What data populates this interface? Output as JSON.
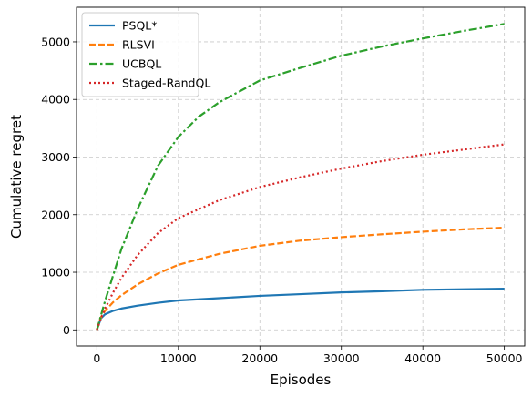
{
  "chart_data": {
    "type": "line",
    "title": "",
    "xlabel": "Episodes",
    "ylabel": "Cumulative regret",
    "xlim": [
      -2500,
      52500
    ],
    "ylim": [
      -280,
      5600
    ],
    "xticks": [
      0,
      10000,
      20000,
      30000,
      40000,
      50000
    ],
    "yticks": [
      0,
      1000,
      2000,
      3000,
      4000,
      5000
    ],
    "grid": true,
    "legend_position": "top-left",
    "series": [
      {
        "name": "PSQL*",
        "color": "#1f77b4",
        "dash": "solid",
        "x": [
          0,
          500,
          1000,
          2000,
          3000,
          5000,
          7500,
          10000,
          15000,
          20000,
          25000,
          30000,
          35000,
          40000,
          45000,
          50000
        ],
        "y": [
          0,
          200,
          270,
          330,
          370,
          420,
          470,
          510,
          550,
          590,
          620,
          650,
          670,
          695,
          705,
          715
        ]
      },
      {
        "name": "RLSVI",
        "color": "#ff7f0e",
        "dash": "dashed",
        "x": [
          0,
          500,
          1000,
          2000,
          3000,
          5000,
          7500,
          10000,
          15000,
          20000,
          25000,
          30000,
          35000,
          40000,
          45000,
          50000
        ],
        "y": [
          0,
          220,
          330,
          480,
          600,
          790,
          980,
          1130,
          1320,
          1460,
          1550,
          1610,
          1660,
          1705,
          1745,
          1775
        ]
      },
      {
        "name": "UCBQL",
        "color": "#2ca02c",
        "dash": "dashdot",
        "x": [
          0,
          500,
          1000,
          2000,
          3000,
          5000,
          7500,
          10000,
          12500,
          15000,
          20000,
          25000,
          30000,
          35000,
          40000,
          45000,
          50000
        ],
        "y": [
          0,
          250,
          500,
          950,
          1400,
          2100,
          2850,
          3350,
          3700,
          3950,
          4330,
          4550,
          4760,
          4920,
          5060,
          5190,
          5310
        ]
      },
      {
        "name": "Staged-RandQL",
        "color": "#d62728",
        "dash": "dotted",
        "x": [
          0,
          500,
          1000,
          2000,
          3000,
          5000,
          7500,
          10000,
          15000,
          20000,
          25000,
          30000,
          35000,
          40000,
          45000,
          50000
        ],
        "y": [
          0,
          200,
          370,
          650,
          900,
          1300,
          1680,
          1940,
          2250,
          2480,
          2650,
          2800,
          2930,
          3040,
          3130,
          3220
        ]
      }
    ]
  }
}
